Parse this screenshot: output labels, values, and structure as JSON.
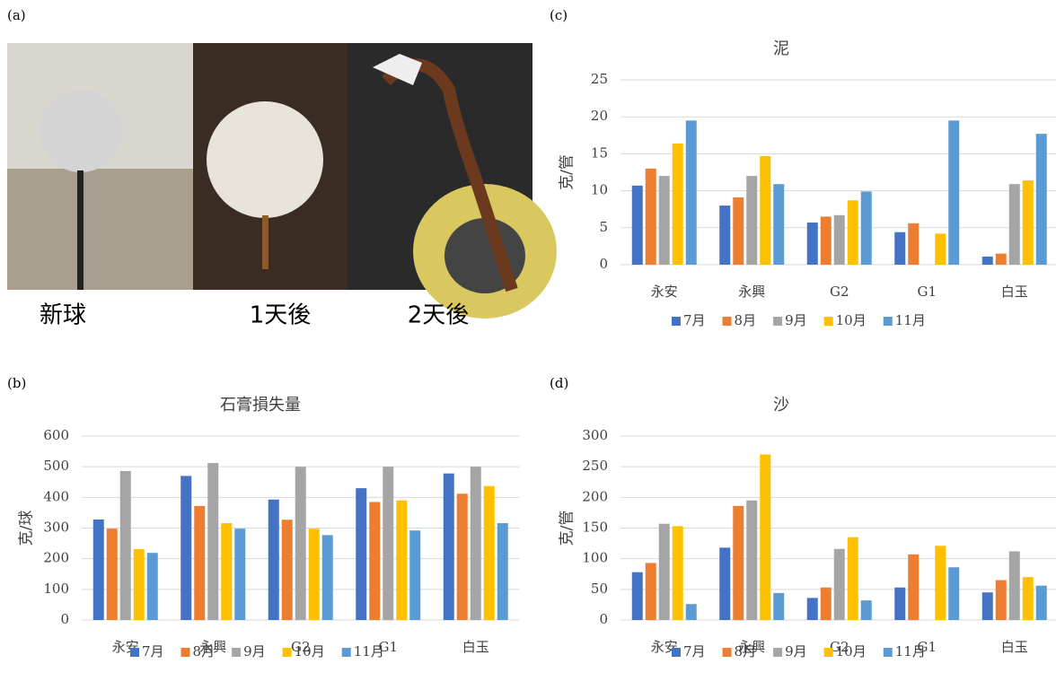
{
  "panels": {
    "a": "(a)",
    "b": "(b)",
    "c": "(c)",
    "d": "(d)"
  },
  "photos": {
    "captions": [
      "新球",
      "1天後",
      "2天後"
    ]
  },
  "chart_data": [
    {
      "type": "bar",
      "title": "石膏損失量",
      "y_label": "克/球",
      "categories": [
        "永安",
        "永興",
        "G2",
        "G1",
        "白玉"
      ],
      "series": [
        {
          "name": "7月",
          "color": "#4472c4",
          "values": [
            328,
            470,
            393,
            430,
            478
          ]
        },
        {
          "name": "8月",
          "color": "#ed7d31",
          "values": [
            298,
            372,
            327,
            385,
            412
          ]
        },
        {
          "name": "9月",
          "color": "#a5a5a5",
          "values": [
            486,
            512,
            500,
            500,
            500
          ]
        },
        {
          "name": "10月",
          "color": "#ffc000",
          "values": [
            231,
            316,
            298,
            390,
            437
          ]
        },
        {
          "name": "11月",
          "color": "#5b9bd5",
          "values": [
            219,
            298,
            277,
            292,
            316
          ]
        }
      ],
      "ylim": [
        0,
        600
      ],
      "yticks": [
        0,
        100,
        200,
        300,
        400,
        500,
        600
      ],
      "grid": true,
      "legend": "bottom"
    },
    {
      "type": "bar",
      "title": "泥",
      "y_label": "克/管",
      "categories": [
        "永安",
        "永興",
        "G2",
        "G1",
        "白玉"
      ],
      "series": [
        {
          "name": "7月",
          "color": "#4472c4",
          "values": [
            10.7,
            8.0,
            5.7,
            4.4,
            1.1
          ]
        },
        {
          "name": "8月",
          "color": "#ed7d31",
          "values": [
            13.0,
            9.1,
            6.5,
            5.6,
            1.5
          ]
        },
        {
          "name": "9月",
          "color": "#a5a5a5",
          "values": [
            12.0,
            12.0,
            6.7,
            null,
            10.9
          ]
        },
        {
          "name": "10月",
          "color": "#ffc000",
          "values": [
            16.4,
            14.7,
            8.7,
            4.2,
            11.4
          ]
        },
        {
          "name": "11月",
          "color": "#5b9bd5",
          "values": [
            19.5,
            10.9,
            9.9,
            19.5,
            17.7
          ]
        }
      ],
      "ylim": [
        0,
        25
      ],
      "yticks": [
        0,
        5,
        10,
        15,
        20,
        25
      ],
      "grid": true,
      "legend": "bottom"
    },
    {
      "type": "bar",
      "title": "沙",
      "y_label": "克/管",
      "categories": [
        "永安",
        "永興",
        "G2",
        "G1",
        "白玉"
      ],
      "series": [
        {
          "name": "7月",
          "color": "#4472c4",
          "values": [
            78,
            118,
            36,
            53,
            45
          ]
        },
        {
          "name": "8月",
          "color": "#ed7d31",
          "values": [
            93,
            186,
            53,
            107,
            65
          ]
        },
        {
          "name": "9月",
          "color": "#a5a5a5",
          "values": [
            157,
            195,
            116,
            null,
            112
          ]
        },
        {
          "name": "10月",
          "color": "#ffc000",
          "values": [
            153,
            270,
            135,
            121,
            70
          ]
        },
        {
          "name": "11月",
          "color": "#5b9bd5",
          "values": [
            26,
            44,
            32,
            86,
            56
          ]
        }
      ],
      "ylim": [
        0,
        300
      ],
      "yticks": [
        0,
        50,
        100,
        150,
        200,
        250,
        300
      ],
      "grid": true,
      "legend": "bottom"
    }
  ]
}
